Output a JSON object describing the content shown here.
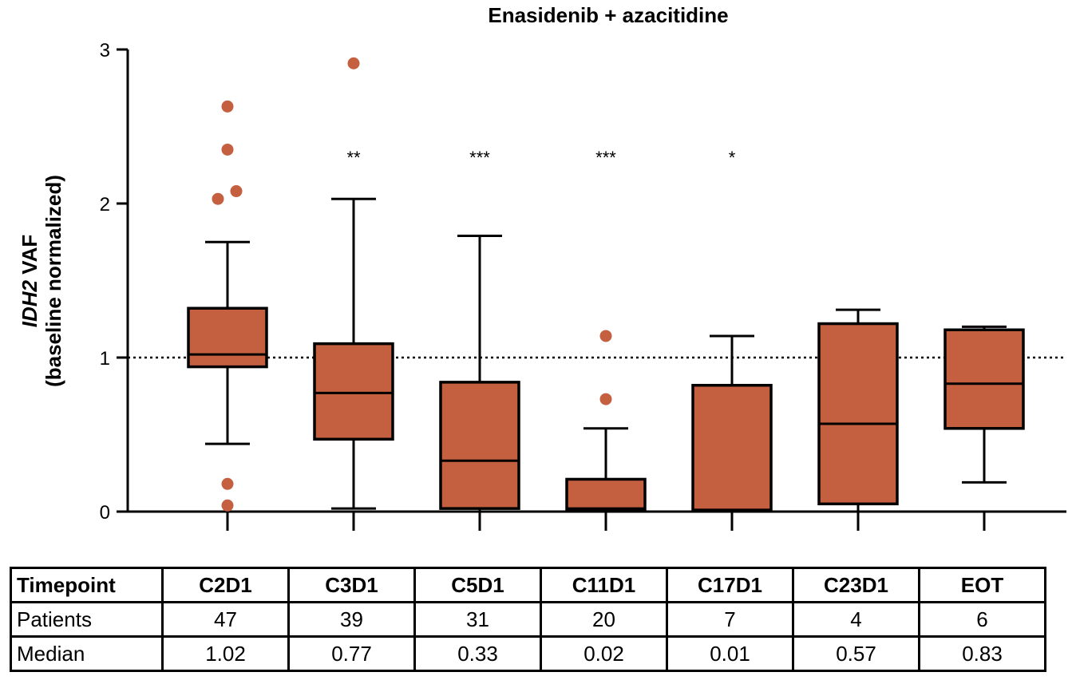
{
  "chart_data": {
    "type": "box",
    "title": "Enasidenib + azacitidine",
    "ylabel_gene": "IDH2",
    "ylabel_rest": " VAF",
    "ylabel_line2": "(baseline normalized)",
    "ylim": [
      0,
      3
    ],
    "yticks": [
      "0",
      "1",
      "2",
      "3"
    ],
    "reference_line": 1,
    "color": "#C46040",
    "categories": [
      "C2D1",
      "C3D1",
      "C5D1",
      "C11D1",
      "C17D1",
      "C23D1",
      "EOT"
    ],
    "boxes": [
      {
        "category": "C2D1",
        "whisker_low": 0.44,
        "q1": 0.94,
        "median": 1.02,
        "q3": 1.32,
        "whisker_high": 1.75,
        "outliers": [
          2.63,
          2.35,
          2.08,
          2.03,
          0.18,
          0.04
        ],
        "significance": ""
      },
      {
        "category": "C3D1",
        "whisker_low": 0.02,
        "q1": 0.47,
        "median": 0.77,
        "q3": 1.09,
        "whisker_high": 2.03,
        "outliers": [
          2.91
        ],
        "significance": "**"
      },
      {
        "category": "C5D1",
        "whisker_low": 0.0,
        "q1": 0.02,
        "median": 0.33,
        "q3": 0.84,
        "whisker_high": 1.79,
        "outliers": [],
        "significance": "***"
      },
      {
        "category": "C11D1",
        "whisker_low": 0.0,
        "q1": 0.01,
        "median": 0.02,
        "q3": 0.21,
        "whisker_high": 0.54,
        "outliers": [
          1.14,
          0.73
        ],
        "significance": "***"
      },
      {
        "category": "C17D1",
        "whisker_low": 0.0,
        "q1": 0.01,
        "median": 0.01,
        "q3": 0.82,
        "whisker_high": 1.14,
        "outliers": [],
        "significance": "*"
      },
      {
        "category": "C23D1",
        "whisker_low": 0.0,
        "q1": 0.05,
        "median": 0.57,
        "q3": 1.22,
        "whisker_high": 1.31,
        "outliers": [],
        "significance": ""
      },
      {
        "category": "EOT",
        "whisker_low": 0.19,
        "q1": 0.54,
        "median": 0.83,
        "q3": 1.18,
        "whisker_high": 1.2,
        "outliers": [],
        "significance": ""
      }
    ]
  },
  "table": {
    "header_label": "Timepoint",
    "timepoints": [
      "C2D1",
      "C3D1",
      "C5D1",
      "C11D1",
      "C17D1",
      "C23D1",
      "EOT"
    ],
    "patients_label": "Patients",
    "patients": [
      "47",
      "39",
      "31",
      "20",
      "7",
      "4",
      "6"
    ],
    "median_label": "Median",
    "medians": [
      "1.02",
      "0.77",
      "0.33",
      "0.02",
      "0.01",
      "0.57",
      "0.83"
    ]
  }
}
